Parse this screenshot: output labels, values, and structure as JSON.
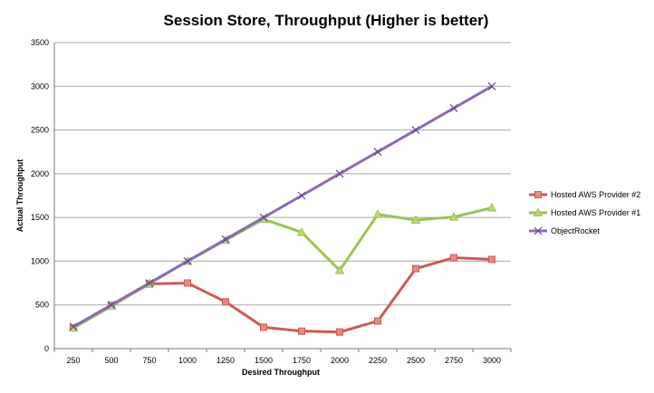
{
  "chart_data": {
    "type": "line",
    "title": "Session Store, Throughput (Higher is better)",
    "xlabel": "Desired Throughput",
    "ylabel": "Actual Throughput",
    "categories": [
      "250",
      "500",
      "750",
      "1000",
      "1250",
      "1500",
      "1750",
      "2000",
      "2250",
      "2500",
      "2750",
      "3000"
    ],
    "yticks": [
      "0",
      "500",
      "1000",
      "1500",
      "2000",
      "2500",
      "3000",
      "3500"
    ],
    "ylim": [
      0,
      3500
    ],
    "grid": true,
    "legend_position": "right",
    "series": [
      {
        "name": "Hosted AWS Provider #2",
        "color": "#cd5a55",
        "marker": "square",
        "values": [
          240,
          495,
          740,
          750,
          535,
          245,
          200,
          190,
          315,
          915,
          1040,
          1020
        ]
      },
      {
        "name": "Hosted AWS Provider #1",
        "color": "#9dc356",
        "marker": "triangle",
        "values": [
          235,
          485,
          745,
          1000,
          1240,
          1480,
          1330,
          895,
          1535,
          1470,
          1505,
          1610
        ]
      },
      {
        "name": "ObjectRocket",
        "color": "#8e6ab2",
        "marker": "x",
        "values": [
          250,
          500,
          750,
          1000,
          1250,
          1500,
          1750,
          2000,
          2250,
          2500,
          2750,
          3000
        ]
      }
    ]
  }
}
